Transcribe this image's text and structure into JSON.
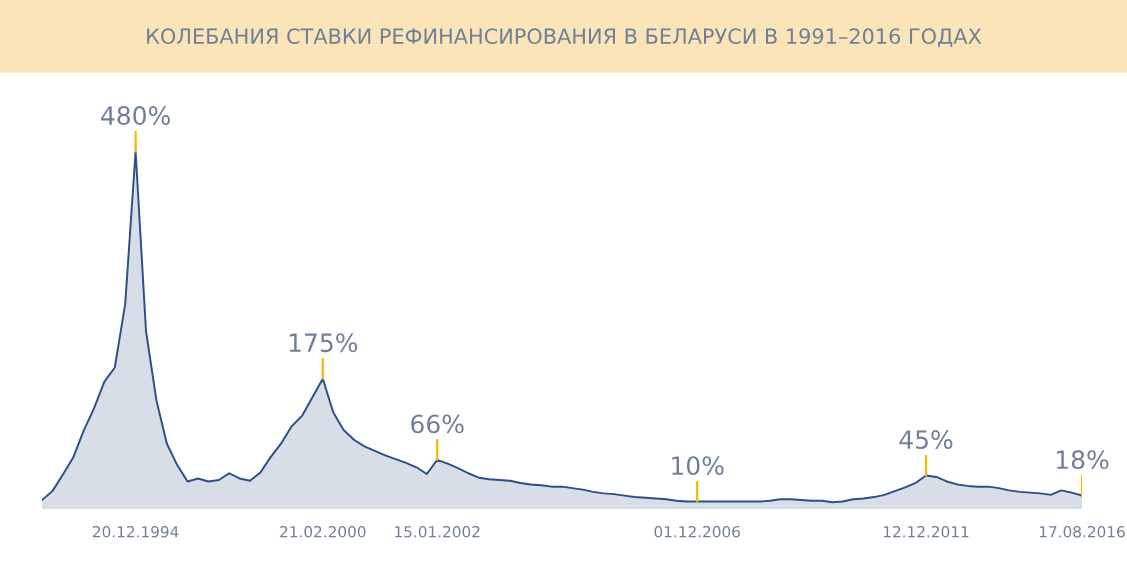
{
  "chart_data": {
    "type": "area",
    "title": "КОЛЕБАНИЯ СТАВКИ РЕФИНАНСИРОВАНИЯ В БЕЛАРУСИ В 1991–2016 ГОДАХ",
    "categories": [
      null,
      null,
      null,
      null,
      null,
      null,
      null,
      null,
      null,
      "20.12.1994",
      null,
      null,
      null,
      null,
      null,
      null,
      null,
      null,
      null,
      null,
      null,
      null,
      null,
      null,
      null,
      null,
      null,
      "21.02.2000",
      null,
      null,
      null,
      null,
      null,
      null,
      null,
      null,
      null,
      null,
      "15.01.2002",
      null,
      null,
      null,
      null,
      null,
      null,
      null,
      null,
      null,
      null,
      null,
      null,
      null,
      null,
      null,
      null,
      null,
      null,
      null,
      null,
      null,
      null,
      null,
      null,
      "01.12.2006",
      null,
      null,
      null,
      null,
      null,
      null,
      null,
      null,
      null,
      null,
      null,
      null,
      null,
      null,
      null,
      null,
      null,
      null,
      null,
      null,
      null,
      "12.12.2011",
      null,
      null,
      null,
      null,
      null,
      null,
      null,
      null,
      null,
      null,
      null,
      null,
      null,
      null,
      "17.08.2016"
    ],
    "series": [
      {
        "color": "#2b4f86",
        "values": [
          12,
          24,
          46,
          69,
          105,
          135,
          171,
          190,
          275,
          480,
          239,
          146,
          88,
          59,
          37,
          41,
          37,
          39,
          48,
          41,
          38,
          49,
          70,
          88,
          111,
          125,
          150,
          175,
          130,
          106,
          93,
          84,
          78,
          72,
          67,
          62,
          56,
          47,
          66,
          61,
          55,
          48,
          42,
          40,
          39,
          38,
          35,
          33,
          32,
          30,
          30,
          28,
          26,
          23,
          21,
          20,
          18,
          16,
          15,
          14,
          13,
          11,
          10,
          10,
          10,
          10,
          10,
          10,
          10,
          10,
          11,
          13,
          13,
          12,
          11,
          11,
          9,
          10,
          13,
          14,
          16,
          19,
          24,
          29,
          35,
          45,
          43,
          37,
          33,
          31,
          30,
          30,
          28,
          25,
          23,
          22,
          21,
          19,
          25,
          22,
          18
        ],
        "value_labels": [
          null,
          null,
          null,
          null,
          null,
          null,
          null,
          null,
          null,
          "480%",
          null,
          null,
          null,
          null,
          null,
          null,
          null,
          null,
          null,
          null,
          null,
          null,
          null,
          null,
          null,
          null,
          null,
          "175%",
          null,
          null,
          null,
          null,
          null,
          null,
          null,
          null,
          null,
          null,
          "66%",
          null,
          null,
          null,
          null,
          null,
          null,
          null,
          null,
          null,
          null,
          null,
          null,
          null,
          null,
          null,
          null,
          null,
          null,
          null,
          null,
          null,
          null,
          null,
          null,
          "10%",
          null,
          null,
          null,
          null,
          null,
          null,
          null,
          null,
          null,
          null,
          null,
          null,
          null,
          null,
          null,
          null,
          null,
          null,
          null,
          null,
          null,
          "45%",
          null,
          null,
          null,
          null,
          null,
          null,
          null,
          null,
          null,
          null,
          null,
          null,
          null,
          null,
          "18%"
        ]
      }
    ]
  }
}
